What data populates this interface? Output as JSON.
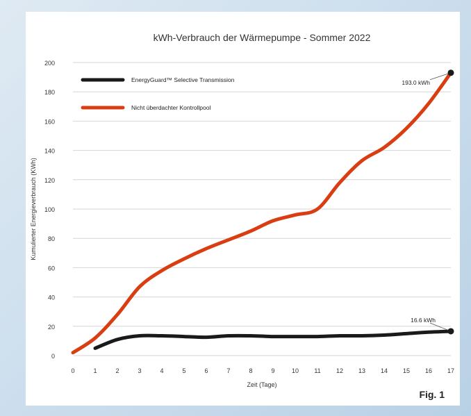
{
  "chart_data": {
    "type": "line",
    "title": "kWh-Verbrauch der Wärmepumpe - Sommer 2022",
    "xlabel": "Zeit (Tage)",
    "ylabel": "Kumulierter Energieverbrauch (KWh)",
    "xlim": [
      0,
      17
    ],
    "ylim": [
      0,
      200
    ],
    "x_ticks": [
      0,
      1,
      2,
      3,
      4,
      5,
      6,
      7,
      8,
      9,
      10,
      11,
      12,
      13,
      14,
      15,
      16,
      17
    ],
    "y_ticks": [
      0,
      20,
      40,
      60,
      80,
      100,
      120,
      140,
      160,
      180,
      200
    ],
    "grid": "horizontal",
    "legend_position": "top-left",
    "series": [
      {
        "name": "EnergyGuard™ Selective Transmission",
        "color": "#1a1a1a",
        "x": [
          1,
          2,
          3,
          4,
          5,
          6,
          7,
          8,
          9,
          10,
          11,
          12,
          13,
          14,
          15,
          16,
          17
        ],
        "y": [
          5,
          11,
          13.5,
          13.5,
          13,
          12.5,
          13.5,
          13.5,
          13,
          13,
          13,
          13.5,
          13.5,
          14,
          15,
          16,
          16.6
        ]
      },
      {
        "name": "Nicht überdachter Kontrollpool",
        "color": "#d93e13",
        "x": [
          0,
          1,
          2,
          3,
          4,
          5,
          6,
          7,
          8,
          9,
          10,
          11,
          12,
          13,
          14,
          15,
          16,
          17
        ],
        "y": [
          2,
          12,
          28,
          47,
          58,
          66,
          73,
          79,
          85,
          92,
          96,
          100,
          118,
          133,
          142,
          155,
          172,
          193
        ]
      }
    ],
    "annotations": [
      {
        "series": 1,
        "x": 17,
        "y": 193,
        "text": "193.0 kWh"
      },
      {
        "series": 0,
        "x": 17,
        "y": 16.6,
        "text": "16.6 kWh"
      }
    ]
  },
  "figure_label": "Fig. 1"
}
